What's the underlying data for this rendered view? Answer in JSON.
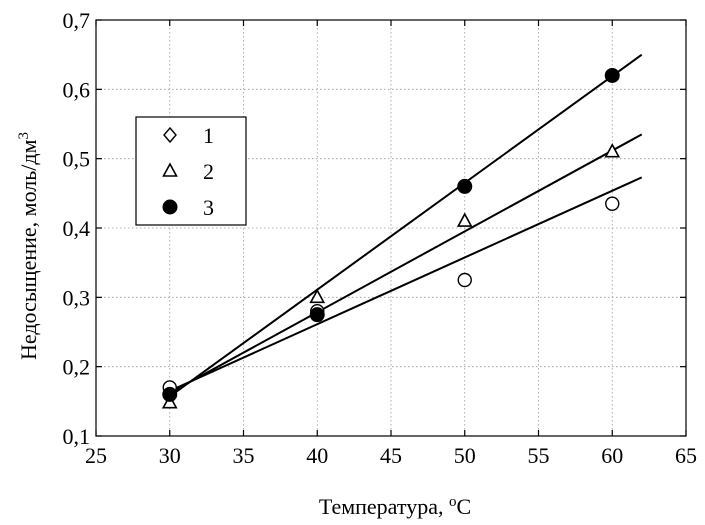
{
  "chart_data": {
    "type": "scatter",
    "xlabel": "Температура, ",
    "xlabel_sup": "о",
    "xlabel_unit": "С",
    "ylabel": "Недосыщение, моль/дм",
    "ylabel_sup": "3",
    "xlim": [
      25,
      65
    ],
    "ylim": [
      0.1,
      0.7
    ],
    "x_ticks": [
      25,
      30,
      35,
      40,
      45,
      50,
      55,
      60,
      65
    ],
    "x_tick_labels": [
      "25",
      "30",
      "35",
      "40",
      "45",
      "50",
      "55",
      "60",
      "65"
    ],
    "y_ticks": [
      0.1,
      0.2,
      0.3,
      0.4,
      0.5,
      0.6,
      0.7
    ],
    "y_tick_labels": [
      "0,1",
      "0,2",
      "0,3",
      "0,4",
      "0,5",
      "0,6",
      "0,7"
    ],
    "grid": true,
    "legend_position": "left",
    "series": [
      {
        "name": "1",
        "legend_marker": "diamond-open",
        "plot_marker": "circle-open",
        "x": [
          30,
          40,
          50,
          60
        ],
        "y": [
          0.17,
          0.28,
          0.325,
          0.435
        ],
        "fit": {
          "x": [
            30,
            62
          ],
          "y": [
            0.165,
            0.473
          ]
        }
      },
      {
        "name": "2",
        "legend_marker": "triangle-open",
        "plot_marker": "triangle-open",
        "x": [
          30,
          40,
          50,
          60
        ],
        "y": [
          0.148,
          0.3,
          0.41,
          0.51
        ],
        "fit": {
          "x": [
            30,
            62
          ],
          "y": [
            0.162,
            0.535
          ]
        }
      },
      {
        "name": "3",
        "legend_marker": "circle-filled",
        "plot_marker": "circle-filled",
        "x": [
          30,
          40,
          50,
          60
        ],
        "y": [
          0.16,
          0.275,
          0.46,
          0.62
        ],
        "fit": {
          "x": [
            30,
            62
          ],
          "y": [
            0.157,
            0.65
          ]
        }
      }
    ]
  }
}
